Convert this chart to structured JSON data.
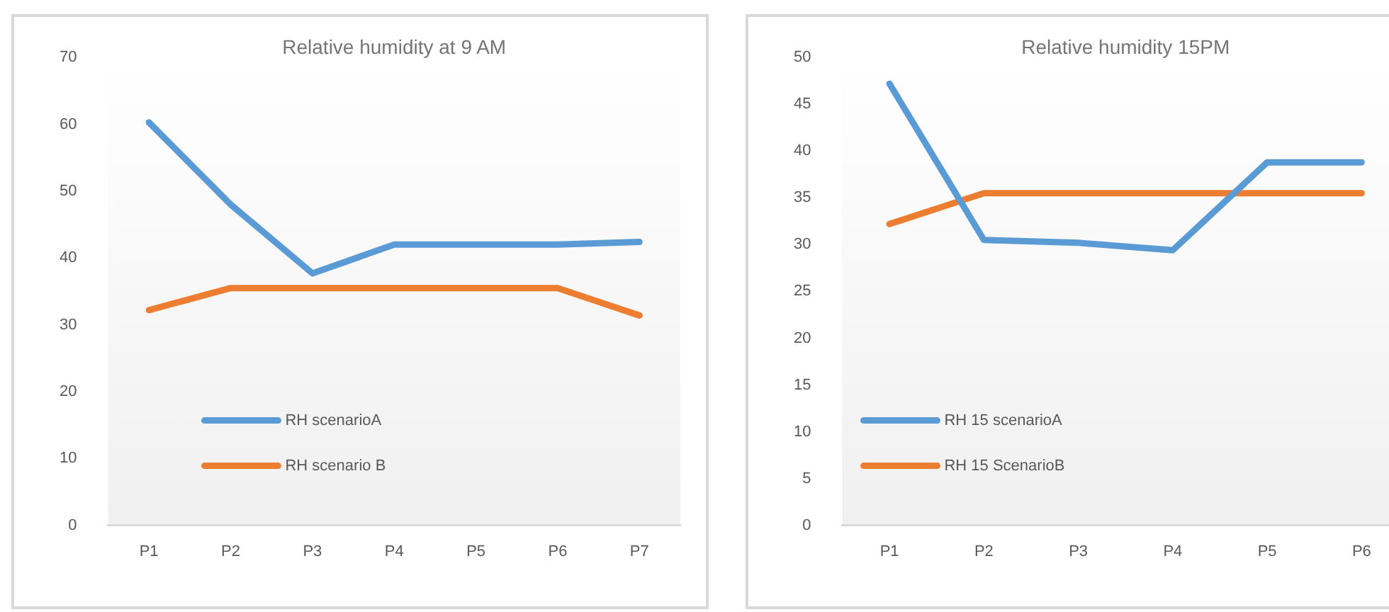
{
  "chart_data": [
    {
      "type": "line",
      "title": "Relative humidity at 9 AM",
      "categories": [
        "P1",
        "P2",
        "P3",
        "P4",
        "P5",
        "P6",
        "P7"
      ],
      "series": [
        {
          "name": "RH scenarioA",
          "color": "#5b9bd5",
          "values": [
            60.3,
            48,
            37.7,
            42,
            42,
            42,
            42.4
          ]
        },
        {
          "name": "RH scenario B",
          "color": "#ed7d31",
          "values": [
            32.2,
            35.5,
            35.5,
            35.5,
            35.5,
            35.5,
            31.4
          ]
        }
      ],
      "ylim": [
        0,
        70
      ],
      "yticks": [
        0,
        10,
        20,
        30,
        40,
        50,
        60,
        70
      ],
      "grid": false,
      "legend": "bottom left",
      "marker": "none"
    },
    {
      "type": "line",
      "title": "Relative humidity 15PM",
      "categories": [
        "P1",
        "P2",
        "P3",
        "P4",
        "P5",
        "P6"
      ],
      "series": [
        {
          "name": "RH 15 scenarioA",
          "color": "#5b9bd5",
          "values": [
            47.2,
            30.5,
            30.2,
            29.4,
            38.8,
            38.8
          ]
        },
        {
          "name": "RH 15 ScenarioB",
          "color": "#ed7d31",
          "values": [
            32.2,
            35.5,
            35.5,
            35.5,
            35.5,
            35.5
          ]
        }
      ],
      "ylim": [
        0,
        50
      ],
      "yticks": [
        0,
        5,
        10,
        15,
        20,
        25,
        30,
        35,
        40,
        45,
        50
      ],
      "grid": false,
      "legend": "bottom left",
      "marker": "none"
    }
  ]
}
